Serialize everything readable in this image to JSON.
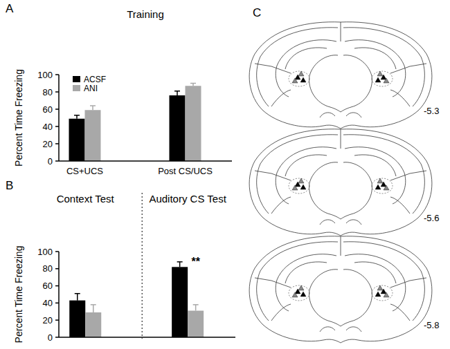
{
  "chart_data": [
    {
      "type": "bar",
      "panel": "A",
      "title": "Training",
      "categories": [
        "CS+UCS",
        "Post CS/UCS"
      ],
      "series": [
        {
          "name": "ACSF",
          "color": "#000000",
          "values": [
            49,
            76
          ],
          "errors": [
            4,
            5
          ]
        },
        {
          "name": "ANI",
          "color": "#a8a8a8",
          "values": [
            59,
            87
          ],
          "errors": [
            5,
            3
          ]
        }
      ],
      "y_label": "Percent Time Freezing",
      "ylim": [
        0,
        100
      ],
      "yticks": [
        0,
        20,
        40,
        60,
        80,
        100
      ],
      "legend": "upper left",
      "grid": false
    },
    {
      "type": "bar",
      "panel": "B",
      "categories": [
        "Context Test",
        "Auditory CS Test"
      ],
      "series": [
        {
          "name": "ACSF",
          "color": "#000000",
          "values": [
            43,
            82
          ],
          "errors": [
            8,
            6
          ]
        },
        {
          "name": "ANI",
          "color": "#a8a8a8",
          "values": [
            29,
            31
          ],
          "errors": [
            9,
            7
          ]
        }
      ],
      "y_label": "Percent Time Freezing",
      "ylim": [
        0,
        100
      ],
      "yticks": [
        0,
        20,
        40,
        60,
        80,
        100
      ],
      "annotations": [
        "**"
      ],
      "grid": false
    }
  ],
  "diagram": {
    "panel": "C",
    "sections": [
      {
        "label": "-5.3"
      },
      {
        "label": "-5.6"
      },
      {
        "label": "-5.8"
      }
    ]
  }
}
